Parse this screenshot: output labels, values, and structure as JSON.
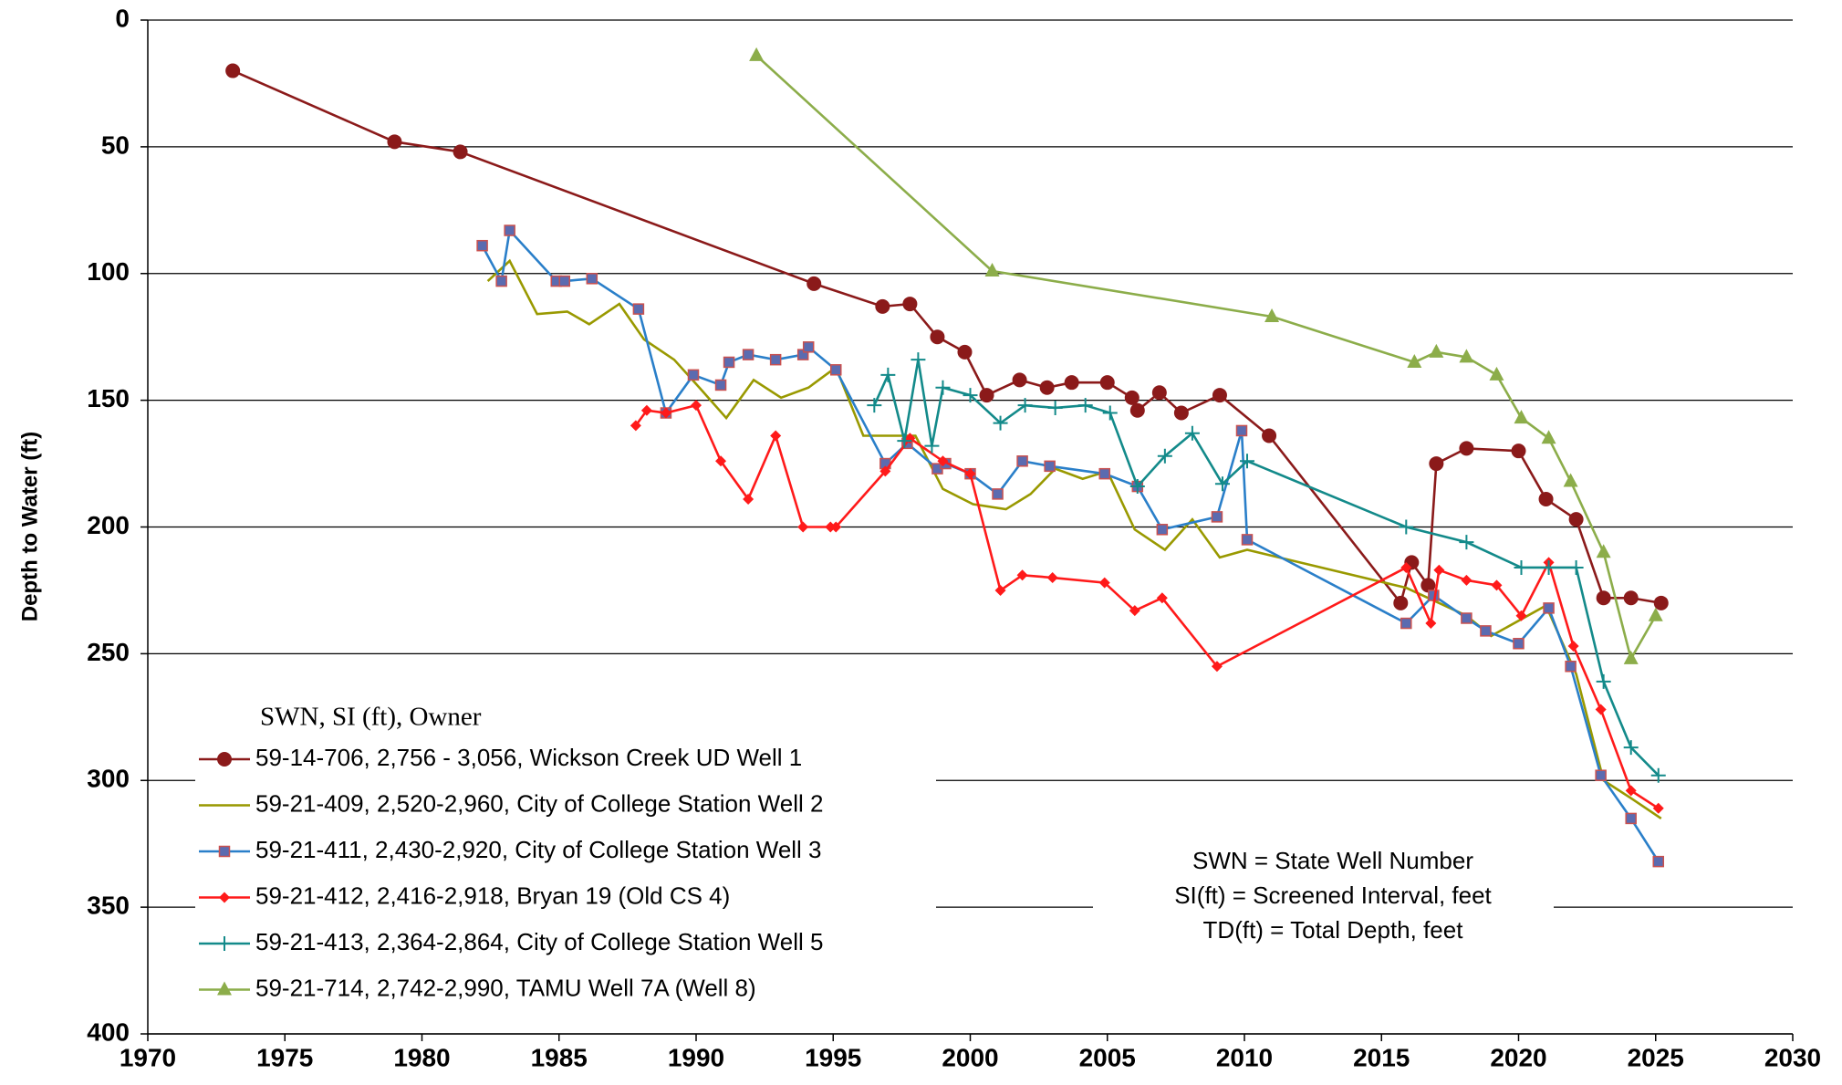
{
  "chart_data": {
    "type": "line",
    "y_label": "Depth to Water (ft)",
    "legend_title": "SWN, SI (ft), Owner",
    "legend": "lower left",
    "annotations": [
      "SWN = State Well Number",
      "SI(ft) = Screened Interval, feet",
      "TD(ft) = Total Depth, feet"
    ],
    "xlim": [
      1970,
      2030
    ],
    "xticks": [
      1970,
      1975,
      1980,
      1985,
      1990,
      1995,
      2000,
      2005,
      2010,
      2015,
      2020,
      2025,
      2030
    ],
    "ylim": [
      0,
      400
    ],
    "yticks": [
      0,
      50,
      100,
      150,
      200,
      250,
      300,
      350,
      400
    ],
    "y_inverted": true,
    "grid": true,
    "series": [
      {
        "name": "59-14-706, 2,756 - 3,056, Wickson Creek UD Well 1",
        "color": "#8b1a1a",
        "marker": "circle",
        "x": [
          1973.1,
          1979.0,
          1981.4,
          1994.3,
          1996.8,
          1997.8,
          1998.8,
          1999.8,
          2000.6,
          2001.8,
          2002.8,
          2003.7,
          2005.0,
          2005.9,
          2006.1,
          2006.9,
          2007.7,
          2009.1,
          2010.9,
          2015.7,
          2016.1,
          2016.7,
          2017.0,
          2018.1,
          2020.0,
          2021.0,
          2022.1,
          2023.1,
          2024.1,
          2025.2
        ],
        "values": [
          20,
          48,
          52,
          104,
          113,
          112,
          125,
          131,
          148,
          142,
          145,
          143,
          143,
          149,
          154,
          147,
          155,
          148,
          164,
          230,
          214,
          223,
          175,
          169,
          170,
          189,
          197,
          228,
          228,
          230
        ]
      },
      {
        "name": "59-21-409, 2,520-2,960, City of College Station Well 2",
        "color": "#999900",
        "marker": "none",
        "x": [
          1982.4,
          1983.2,
          1984.2,
          1985.3,
          1986.1,
          1987.2,
          1988.1,
          1989.2,
          1990.2,
          1991.1,
          1992.1,
          1993.1,
          1994.1,
          1995.1,
          1996.1,
          1998.0,
          1999.0,
          2000.1,
          2001.3,
          2002.2,
          2003.1,
          2004.1,
          2005.0,
          2006.0,
          2007.1,
          2008.1,
          2009.1,
          2010.1,
          2015.9,
          2016.9,
          2018.1,
          2019.0,
          2021.0,
          2022.1,
          2023.1,
          2024.1,
          2025.2
        ],
        "values": [
          103,
          95,
          116,
          115,
          120,
          112,
          126,
          134,
          146,
          157,
          142,
          149,
          145,
          137,
          164,
          164,
          185,
          191,
          193,
          187,
          177,
          181,
          178,
          201,
          209,
          197,
          212,
          209,
          224,
          229,
          235,
          243,
          231,
          258,
          300,
          307,
          315
        ]
      },
      {
        "name": "59-21-411, 2,430-2,920, City of College Station Well 3",
        "color": "#2a7fc9",
        "marker": "square",
        "x": [
          1982.2,
          1982.9,
          1983.2,
          1984.9,
          1985.2,
          1986.2,
          1987.9,
          1988.9,
          1989.9,
          1990.9,
          1991.2,
          1991.9,
          1992.9,
          1993.9,
          1994.1,
          1995.1,
          1996.9,
          1997.7,
          1998.8,
          1999.1,
          2000.0,
          2001.0,
          2001.9,
          2002.9,
          2004.9,
          2006.1,
          2007.0,
          2009.0,
          2009.9,
          2010.1,
          2015.9,
          2016.9,
          2018.1,
          2018.8,
          2020.0,
          2021.1,
          2021.9,
          2023.0,
          2024.1,
          2025.1
        ],
        "values": [
          89,
          103,
          83,
          103,
          103,
          102,
          114,
          155,
          140,
          144,
          135,
          132,
          134,
          132,
          129,
          138,
          175,
          167,
          177,
          175,
          179,
          187,
          174,
          176,
          179,
          184,
          201,
          196,
          162,
          205,
          238,
          227,
          236,
          241,
          246,
          232,
          255,
          298,
          315,
          332
        ]
      },
      {
        "name": "59-21-412, 2,416-2,918, Bryan 19 (Old CS 4)",
        "color": "#ff1a1a",
        "marker": "diamond",
        "x": [
          1987.8,
          1988.2,
          1988.9,
          1990.0,
          1990.9,
          1991.9,
          1992.9,
          1993.9,
          1994.9,
          1995.1,
          1996.9,
          1997.8,
          1999.0,
          2000.0,
          2001.1,
          2001.9,
          2003.0,
          2004.9,
          2006.0,
          2007.0,
          2009.0,
          2015.9,
          2016.8,
          2017.1,
          2018.1,
          2019.2,
          2020.1,
          2021.1,
          2022.0,
          2023.0,
          2024.1,
          2025.1
        ],
        "values": [
          160,
          154,
          155,
          152,
          174,
          189,
          164,
          200,
          200,
          200,
          178,
          165,
          174,
          179,
          225,
          219,
          220,
          222,
          233,
          228,
          255,
          216,
          238,
          217,
          221,
          223,
          235,
          214,
          247,
          272,
          304,
          311
        ]
      },
      {
        "name": "59-21-413, 2,364-2,864, City of College Station Well 5",
        "color": "#138a8a",
        "marker": "plus",
        "x": [
          1996.5,
          1997.0,
          1997.6,
          1998.1,
          1998.6,
          1999.0,
          2000.0,
          2001.1,
          2002.0,
          2003.1,
          2004.2,
          2005.1,
          2006.1,
          2007.1,
          2008.1,
          2009.2,
          2010.1,
          2015.9,
          2018.1,
          2020.1,
          2021.1,
          2022.1,
          2023.1,
          2024.1,
          2025.1
        ],
        "values": [
          152,
          140,
          166,
          134,
          168,
          145,
          148,
          159,
          152,
          153,
          152,
          155,
          184,
          172,
          163,
          183,
          174,
          200,
          206,
          216,
          216,
          216,
          261,
          287,
          298
        ]
      },
      {
        "name": "59-21-714, 2,742-2,990, TAMU Well 7A (Well 8)",
        "color": "#8cad4a",
        "marker": "triangle",
        "x": [
          1992.2,
          2000.8,
          2011.0,
          2016.2,
          2017.0,
          2018.1,
          2019.2,
          2020.1,
          2021.1,
          2021.9,
          2023.1,
          2024.1,
          2025.0
        ],
        "values": [
          14,
          99,
          117,
          135,
          131,
          133,
          140,
          157,
          165,
          182,
          210,
          252,
          235
        ]
      }
    ]
  }
}
